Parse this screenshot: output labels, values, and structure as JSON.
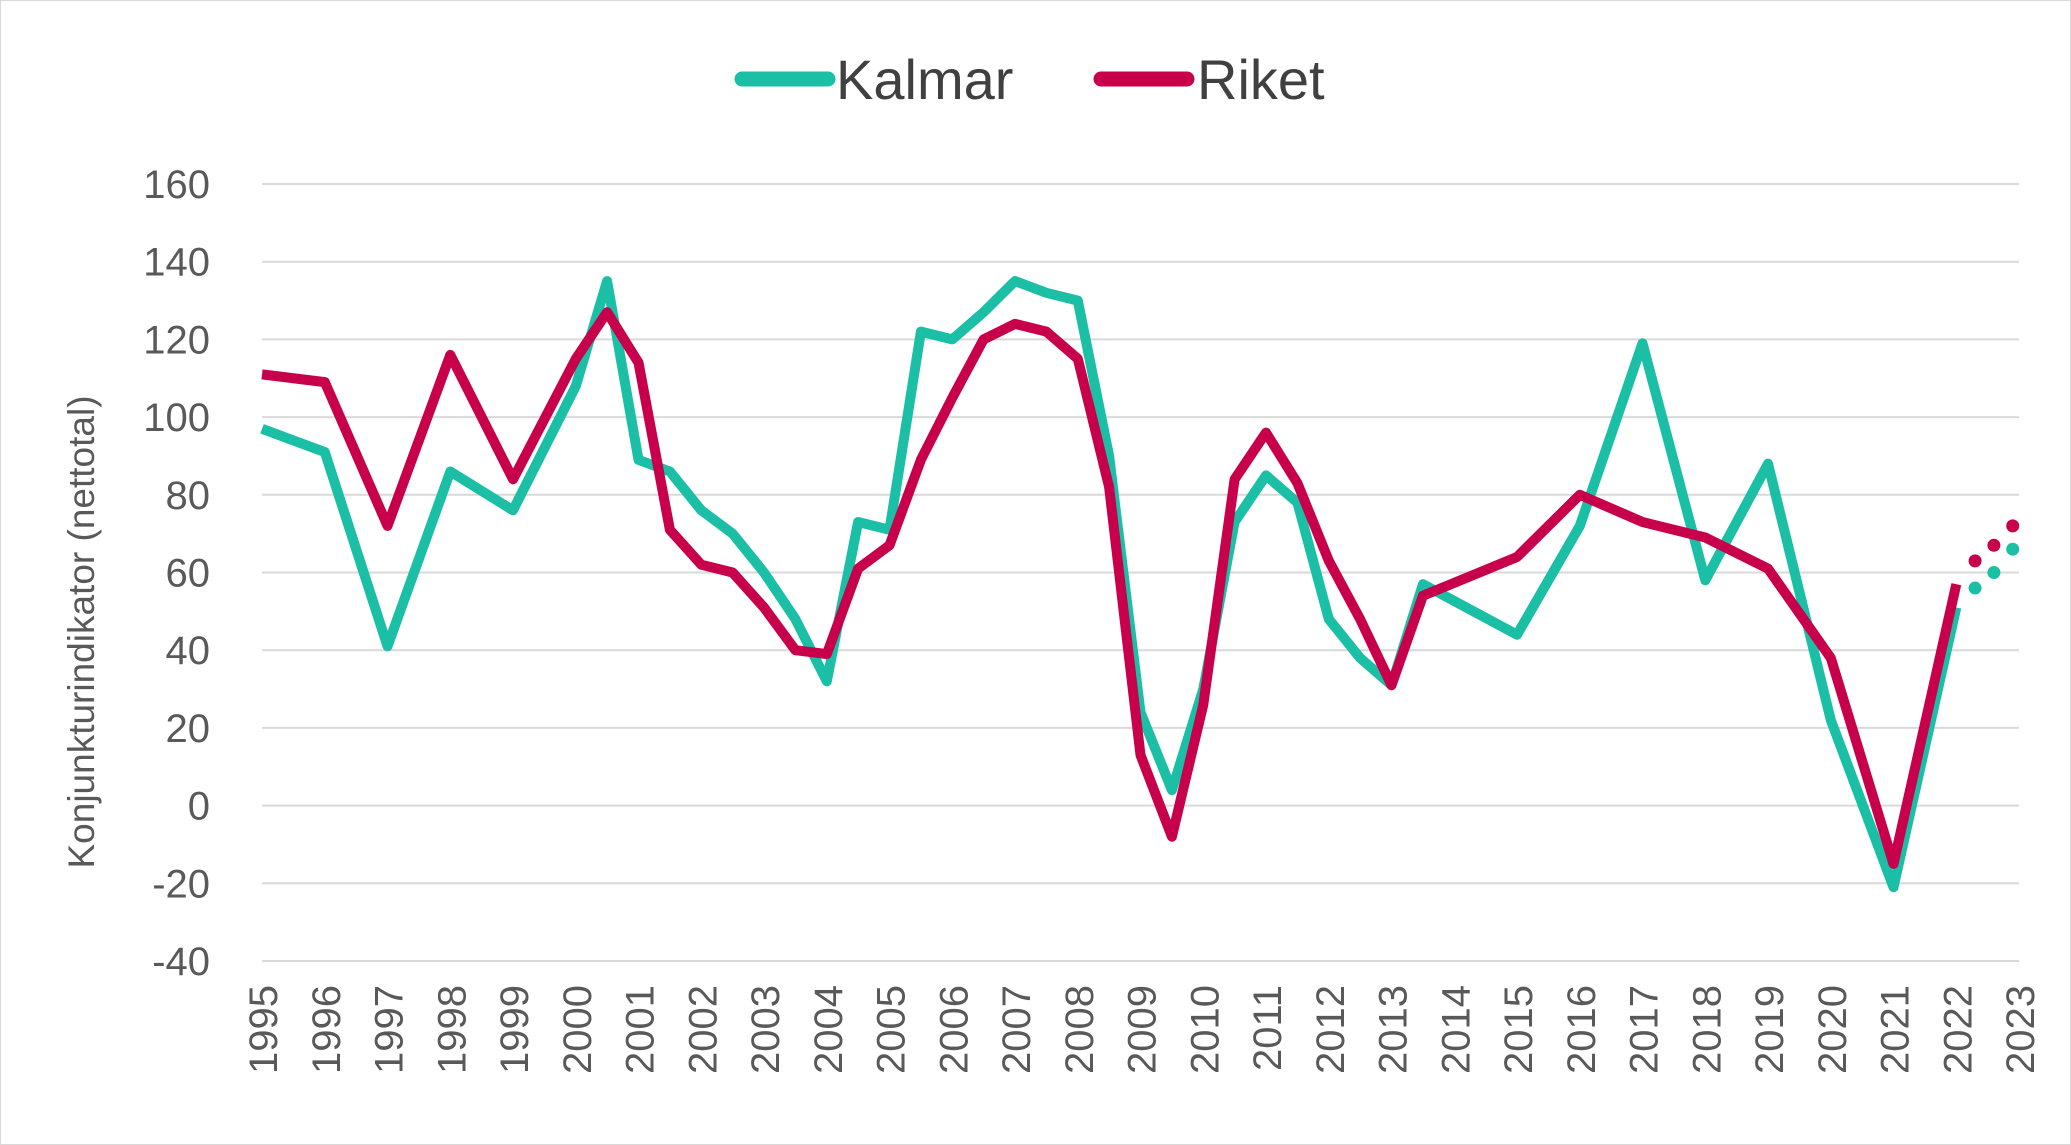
{
  "chart_data": {
    "type": "line",
    "ylabel": "Konjunkturindikator (nettotal)",
    "ylim": [
      -40,
      160
    ],
    "yticks": [
      -40,
      -20,
      0,
      20,
      40,
      60,
      80,
      100,
      120,
      140,
      160
    ],
    "ytick_labels": [
      "-40",
      "-20",
      "0",
      "20",
      "40",
      "60",
      "80",
      "100",
      "120",
      "140",
      "160"
    ],
    "xlim": [
      1995,
      2023
    ],
    "xticks": [
      1995,
      1996,
      1997,
      1998,
      1999,
      2000,
      2001,
      2002,
      2003,
      2004,
      2005,
      2006,
      2007,
      2008,
      2009,
      2010,
      2011,
      2012,
      2013,
      2014,
      2015,
      2016,
      2017,
      2018,
      2019,
      2020,
      2021,
      2022,
      2023
    ],
    "xtick_labels": [
      "1995",
      "1996",
      "1997",
      "1998",
      "1999",
      "2000",
      "2001",
      "2002",
      "2003",
      "2004",
      "2005",
      "2006",
      "2007",
      "2008",
      "2009",
      "2010",
      "2011",
      "2012",
      "2013",
      "2014",
      "2015",
      "2016",
      "2017",
      "2018",
      "2019",
      "2020",
      "2021",
      "2022",
      "2023"
    ],
    "grid": true,
    "legend_position": "top-center",
    "series": [
      {
        "name": "Kalmar",
        "color": "#1ABFA5",
        "style": "solid",
        "points": [
          [
            1995,
            97
          ],
          [
            1996,
            91
          ],
          [
            1997,
            41
          ],
          [
            1998,
            86
          ],
          [
            1999,
            76
          ],
          [
            2000,
            108
          ],
          [
            2000.5,
            135
          ],
          [
            2001,
            89
          ],
          [
            2001.5,
            86
          ],
          [
            2002,
            76
          ],
          [
            2002.5,
            70
          ],
          [
            2003,
            60
          ],
          [
            2003.5,
            48
          ],
          [
            2004,
            32
          ],
          [
            2004.5,
            73
          ],
          [
            2005,
            71
          ],
          [
            2005.5,
            122
          ],
          [
            2006,
            120
          ],
          [
            2006.5,
            127
          ],
          [
            2007,
            135
          ],
          [
            2007.5,
            132
          ],
          [
            2008,
            130
          ],
          [
            2008.5,
            90
          ],
          [
            2009,
            24
          ],
          [
            2009.5,
            4
          ],
          [
            2010,
            30
          ],
          [
            2010.5,
            73
          ],
          [
            2011,
            85
          ],
          [
            2011.5,
            78
          ],
          [
            2012,
            48
          ],
          [
            2012.5,
            38
          ],
          [
            2013,
            31
          ],
          [
            2013.5,
            57
          ],
          [
            2015,
            44
          ],
          [
            2016,
            72
          ],
          [
            2017,
            119
          ],
          [
            2018,
            58
          ],
          [
            2019,
            88
          ],
          [
            2020,
            22
          ],
          [
            2021,
            -21
          ],
          [
            2022,
            51
          ]
        ]
      },
      {
        "name": "Riket",
        "color": "#C8004B",
        "style": "solid",
        "points": [
          [
            1995,
            111
          ],
          [
            1996,
            109
          ],
          [
            1997,
            72
          ],
          [
            1998,
            116
          ],
          [
            1999,
            84
          ],
          [
            2000,
            115
          ],
          [
            2000.5,
            127
          ],
          [
            2001,
            114
          ],
          [
            2001.5,
            71
          ],
          [
            2002,
            62
          ],
          [
            2002.5,
            60
          ],
          [
            2003,
            51
          ],
          [
            2003.5,
            40
          ],
          [
            2004,
            39
          ],
          [
            2004.5,
            61
          ],
          [
            2005,
            67
          ],
          [
            2005.5,
            89
          ],
          [
            2006,
            105
          ],
          [
            2006.5,
            120
          ],
          [
            2007,
            124
          ],
          [
            2007.5,
            122
          ],
          [
            2008,
            115
          ],
          [
            2008.5,
            82
          ],
          [
            2009,
            13
          ],
          [
            2009.5,
            -8
          ],
          [
            2010,
            26
          ],
          [
            2010.5,
            84
          ],
          [
            2011,
            96
          ],
          [
            2011.5,
            83
          ],
          [
            2012,
            63
          ],
          [
            2012.5,
            48
          ],
          [
            2013,
            31
          ],
          [
            2013.5,
            54
          ],
          [
            2015,
            64
          ],
          [
            2016,
            80
          ],
          [
            2017,
            73
          ],
          [
            2018,
            69
          ],
          [
            2019,
            61
          ],
          [
            2020,
            38
          ],
          [
            2021,
            -15
          ],
          [
            2022,
            57
          ]
        ]
      },
      {
        "name": "",
        "color": "#1ABFA5",
        "style": "dotted",
        "points": [
          [
            2022.3,
            56
          ],
          [
            2022.6,
            60
          ],
          [
            2022.9,
            66
          ]
        ]
      },
      {
        "name": "",
        "color": "#C8004B",
        "style": "dotted",
        "points": [
          [
            2022.3,
            63
          ],
          [
            2022.6,
            67
          ],
          [
            2022.9,
            72
          ]
        ]
      }
    ]
  }
}
